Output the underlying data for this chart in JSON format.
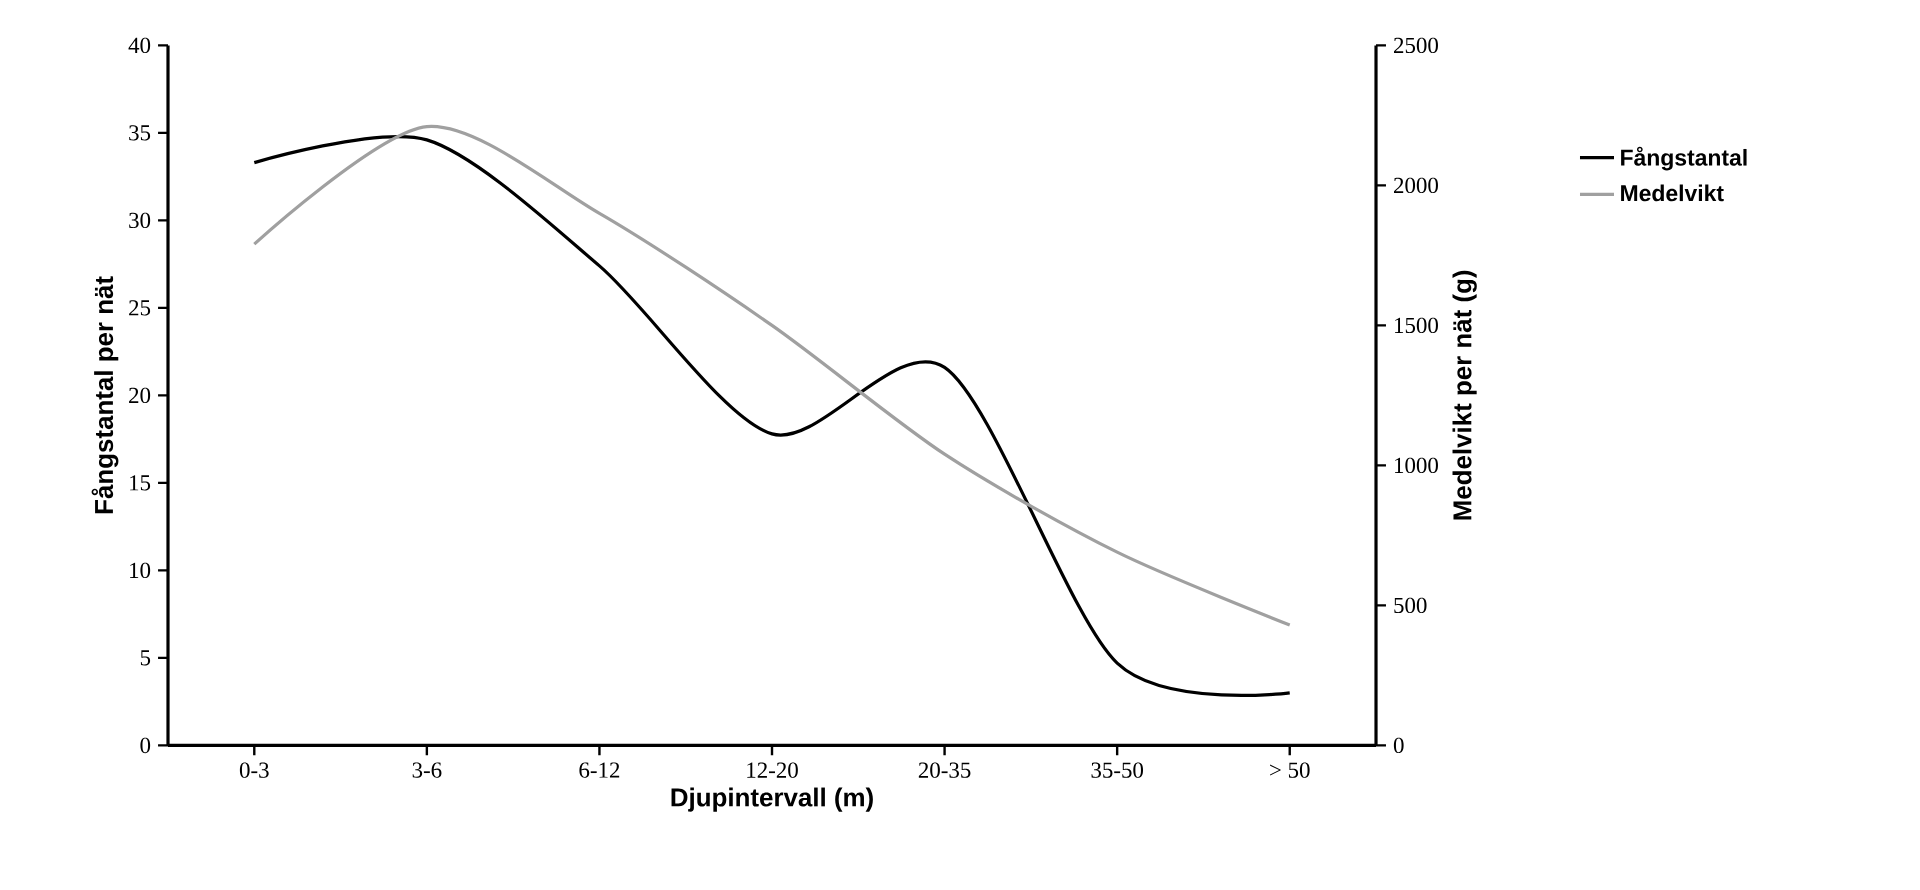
{
  "chart_data": {
    "type": "line",
    "xlabel": "Djupintervall (m)",
    "ylabel": "Fångstantal per nät",
    "y2label": "Medelvikt per nät (g)",
    "categories": [
      "0-3",
      "3-6",
      "6-12",
      "12-20",
      "20-35",
      "35-50",
      "> 50"
    ],
    "series": [
      {
        "name": "Fångstantal",
        "color": "#000000",
        "values": [
          33.3,
          34.6,
          27.4,
          17.8,
          21.6,
          4.7,
          3.0
        ]
      },
      {
        "name": "Medelvikt",
        "color": "#a0a0a0",
        "axis": "y2",
        "values": [
          1790,
          2210,
          1900,
          1500,
          1040,
          690,
          430
        ]
      }
    ],
    "ylim": [
      0,
      40
    ],
    "yticks": [
      0,
      5,
      10,
      15,
      20,
      25,
      30,
      35,
      40
    ],
    "y2lim": [
      0,
      2500
    ],
    "y2ticks": [
      0,
      500,
      1000,
      1500,
      2000,
      2500
    ],
    "grid": false,
    "legend": "right",
    "marker": "none",
    "line_style": "solid"
  }
}
